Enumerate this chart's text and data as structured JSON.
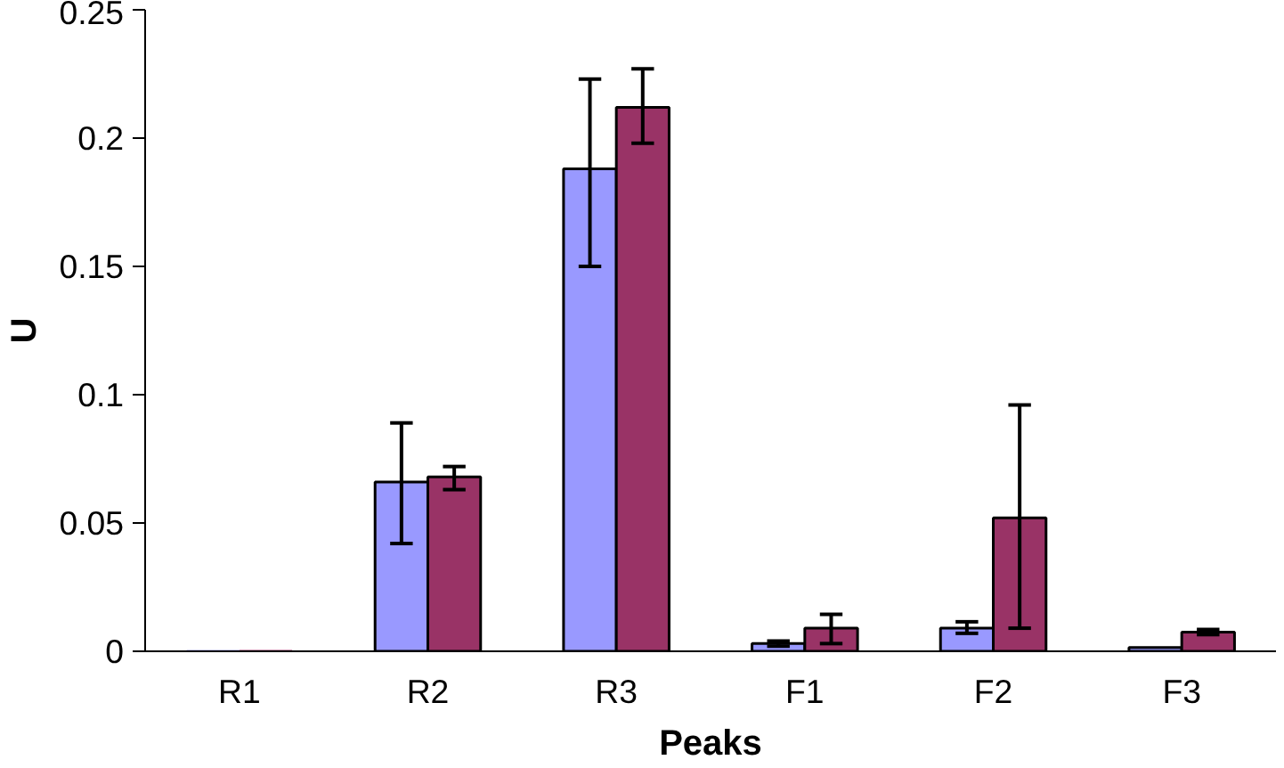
{
  "chart_data": {
    "type": "bar",
    "xlabel": "Peaks",
    "ylabel": "U",
    "categories": [
      "R1",
      "R2",
      "R3",
      "F1",
      "F2",
      "F3"
    ],
    "series": [
      {
        "color": "#9999ff",
        "values": [
          0,
          0.066,
          0.188,
          0.003,
          0.009,
          0.0015
        ],
        "errors": [
          null,
          [
            0.042,
            0.089
          ],
          [
            0.15,
            0.223
          ],
          [
            0.002,
            0.004
          ],
          [
            0.007,
            0.0115
          ],
          null
        ]
      },
      {
        "color": "#993366",
        "values": [
          0,
          0.068,
          0.212,
          0.009,
          0.052,
          0.0075
        ],
        "errors": [
          null,
          [
            0.063,
            0.072
          ],
          [
            0.198,
            0.227
          ],
          [
            0.003,
            0.0144
          ],
          [
            0.009,
            0.096
          ],
          [
            0.0065,
            0.0085
          ]
        ]
      }
    ],
    "ylim": [
      0,
      0.25
    ],
    "yticks": [
      0,
      0.05,
      0.1,
      0.15,
      0.2,
      0.25
    ],
    "grid": false
  }
}
